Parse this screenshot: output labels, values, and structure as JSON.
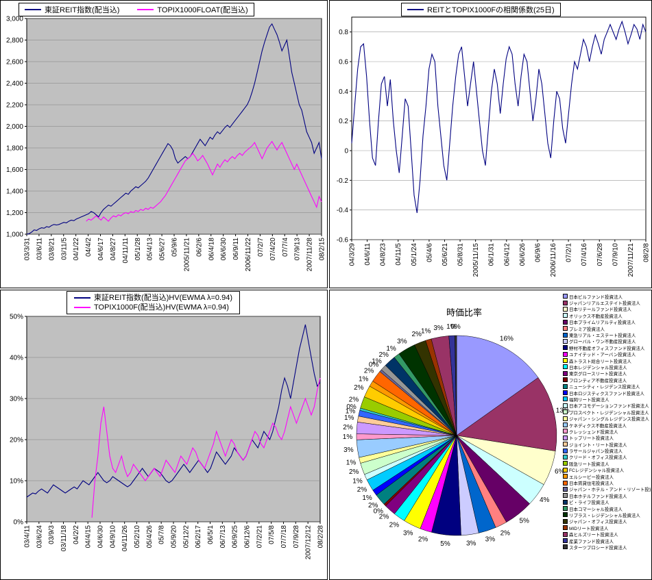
{
  "chart_data": [
    {
      "type": "line",
      "title": "",
      "legend": [
        {
          "label": "東証REIT指数(配当込)"
        },
        {
          "label": "TOPIX1000FLOAT(配当込)"
        }
      ],
      "plot_bg": "#C0C0C0",
      "grid_color": "#808080",
      "ylim": [
        1000,
        3000
      ],
      "y_tick_values": [
        1000,
        1200,
        1400,
        1600,
        1800,
        2000,
        2200,
        2400,
        2600,
        2800,
        3000
      ],
      "y_tick_labels": [
        "1,000",
        "1,200",
        "1,400",
        "1,600",
        "1,800",
        "2,000",
        "2,200",
        "2,400",
        "2,600",
        "2,800",
        "3,000"
      ],
      "x_labels": [
        "03/3/31",
        "03/6/11",
        "03/8/21",
        "03/11/5",
        "04/1/22",
        "04/4/2",
        "04/6/17",
        "04/8/27",
        "04/11/11",
        "05/1/28",
        "05/4/13",
        "05/6/27",
        "05/9/6",
        "2005/11/21",
        "06/2/6",
        "06/4/18",
        "06/6/30",
        "06/9/11",
        "2006/11/22",
        "07/2/7",
        "07/4/20",
        "07/7/4",
        "07/9/13",
        "2007/11/28",
        "08/2/15"
      ],
      "series": [
        {
          "name": "東証REIT指数(配当込)",
          "color": "#000080",
          "values": [
            1000,
            1005,
            1020,
            1040,
            1035,
            1050,
            1060,
            1055,
            1070,
            1065,
            1080,
            1090,
            1085,
            1090,
            1100,
            1110,
            1105,
            1120,
            1130,
            1125,
            1140,
            1150,
            1160,
            1170,
            1180,
            1190,
            1210,
            1200,
            1180,
            1160,
            1200,
            1230,
            1250,
            1270,
            1260,
            1280,
            1300,
            1320,
            1340,
            1360,
            1380,
            1370,
            1400,
            1420,
            1440,
            1430,
            1450,
            1470,
            1490,
            1520,
            1560,
            1600,
            1640,
            1680,
            1720,
            1760,
            1800,
            1840,
            1820,
            1780,
            1700,
            1660,
            1680,
            1700,
            1720,
            1700,
            1720,
            1760,
            1800,
            1840,
            1880,
            1850,
            1820,
            1860,
            1900,
            1880,
            1920,
            1950,
            1930,
            1960,
            1990,
            2010,
            1990,
            2020,
            2050,
            2080,
            2110,
            2140,
            2170,
            2200,
            2250,
            2320,
            2400,
            2500,
            2600,
            2700,
            2780,
            2850,
            2920,
            2950,
            2900,
            2850,
            2780,
            2700,
            2750,
            2800,
            2650,
            2500,
            2400,
            2300,
            2200,
            2150,
            2050,
            1950,
            1900,
            1850,
            1750,
            1800,
            1850,
            1700
          ]
        },
        {
          "name": "TOPIX1000FLOAT(配当込)",
          "color": "#FF00FF",
          "values": [
            null,
            null,
            null,
            null,
            null,
            null,
            null,
            null,
            null,
            null,
            null,
            null,
            null,
            null,
            null,
            null,
            null,
            null,
            null,
            null,
            null,
            null,
            null,
            null,
            1120,
            1140,
            1130,
            1150,
            1170,
            1150,
            1130,
            1160,
            1140,
            1120,
            1150,
            1170,
            1160,
            1180,
            1170,
            1190,
            1200,
            1190,
            1210,
            1200,
            1220,
            1210,
            1230,
            1220,
            1240,
            1230,
            1250,
            1240,
            1260,
            1280,
            1300,
            1330,
            1360,
            1400,
            1440,
            1480,
            1520,
            1560,
            1600,
            1640,
            1680,
            1700,
            1720,
            1750,
            1720,
            1680,
            1700,
            1730,
            1690,
            1650,
            1600,
            1550,
            1600,
            1650,
            1620,
            1660,
            1690,
            1670,
            1700,
            1720,
            1700,
            1730,
            1750,
            1730,
            1760,
            1780,
            1800,
            1820,
            1850,
            1800,
            1750,
            1700,
            1750,
            1800,
            1830,
            1860,
            1820,
            1780,
            1820,
            1850,
            1800,
            1750,
            1700,
            1650,
            1600,
            1650,
            1600,
            1550,
            1500,
            1450,
            1400,
            1350,
            1300,
            1250,
            1350,
            1300
          ]
        }
      ]
    },
    {
      "type": "line",
      "title": "REITとTOPIX1000Fの相関係数(25日)",
      "legend": [
        {
          "label": "REITとTOPIX1000Fの相関係数(25日)"
        }
      ],
      "plot_bg": "#FFFFFF",
      "grid_color": "#999999",
      "ylim": [
        -0.6,
        0.9
      ],
      "y_tick_values": [
        -0.6,
        -0.4,
        -0.2,
        0,
        0.2,
        0.4,
        0.6,
        0.8
      ],
      "y_tick_labels": [
        "-0.6",
        "-0.4",
        "-0.2",
        "0",
        "0.2",
        "0.4",
        "0.6",
        "0.8"
      ],
      "x_labels": [
        "04/3/29",
        "04/6/11",
        "04/8/23",
        "04/11/5",
        "05/1/24",
        "05/4/6",
        "05/6/21",
        "05/8/31",
        "2005/11/15",
        "06/1/31",
        "06/4/12",
        "06/6/26",
        "06/9/6",
        "2006/11/16",
        "07/2/1",
        "07/4/16",
        "07/6/28",
        "07/9/10",
        "2007/11/21",
        "08/2/8"
      ],
      "series": [
        {
          "name": "REITとTOPIX1000Fの相関係数(25日)",
          "color": "#000080",
          "values": [
            0.05,
            0.3,
            0.55,
            0.7,
            0.72,
            0.5,
            0.2,
            -0.05,
            -0.1,
            0.2,
            0.45,
            0.5,
            0.3,
            0.48,
            0.2,
            0.0,
            -0.15,
            0.1,
            0.35,
            0.3,
            0.0,
            -0.3,
            -0.42,
            -0.2,
            0.1,
            0.3,
            0.55,
            0.65,
            0.6,
            0.3,
            0.1,
            -0.1,
            -0.2,
            0.05,
            0.3,
            0.5,
            0.65,
            0.7,
            0.5,
            0.3,
            0.45,
            0.6,
            0.4,
            0.2,
            0.0,
            -0.1,
            0.15,
            0.4,
            0.55,
            0.45,
            0.25,
            0.45,
            0.62,
            0.7,
            0.65,
            0.45,
            0.3,
            0.5,
            0.65,
            0.6,
            0.4,
            0.2,
            0.35,
            0.55,
            0.45,
            0.25,
            0.05,
            -0.05,
            0.2,
            0.4,
            0.35,
            0.15,
            0.05,
            0.25,
            0.45,
            0.6,
            0.55,
            0.65,
            0.75,
            0.7,
            0.6,
            0.7,
            0.78,
            0.72,
            0.65,
            0.75,
            0.8,
            0.85,
            0.8,
            0.75,
            0.82,
            0.87,
            0.8,
            0.72,
            0.78,
            0.85,
            0.82,
            0.75,
            0.85,
            0.8
          ]
        }
      ]
    },
    {
      "type": "line",
      "title": "",
      "legend": [
        {
          "label": "東証REIT指数(配当込)HV(EWMA λ=0.94)"
        },
        {
          "label": "TOPIX1000F(配当込)HV(EWMA λ=0.94)"
        }
      ],
      "plot_bg": "#C0C0C0",
      "grid_color": "#808080",
      "ylim": [
        0,
        50
      ],
      "y_tick_values": [
        0,
        10,
        20,
        30,
        40,
        50
      ],
      "y_tick_labels": [
        "0%",
        "10%",
        "20%",
        "30%",
        "40%",
        "50%"
      ],
      "x_labels": [
        "03/4/11",
        "03/6/24",
        "03/9/3",
        "03/11/18",
        "04/2/2",
        "04/4/15",
        "04/6/30",
        "04/9/10",
        "04/11/26",
        "05/2/10",
        "05/4/26",
        "05/7/8",
        "05/9/20",
        "05/12/2",
        "06/2/17",
        "06/5/1",
        "06/7/13",
        "06/9/25",
        "06/12/6",
        "07/2/21",
        "07/5/8",
        "07/7/18",
        "07/9/28",
        "2007/12/12",
        "08/2/28"
      ],
      "series": [
        {
          "name": "東証REIT指数(配当込)HV(EWMA λ=0.94)",
          "color": "#000080",
          "values": [
            6,
            6.5,
            7,
            6.8,
            7.5,
            8,
            7.5,
            7,
            8,
            9,
            8.5,
            8,
            7.5,
            7,
            7.5,
            8,
            8.5,
            8,
            9,
            10,
            9.5,
            9,
            10,
            11,
            12,
            11,
            10,
            9.5,
            10,
            11,
            10.5,
            10,
            9.5,
            9,
            8.5,
            9,
            10,
            11,
            12,
            13,
            12,
            11,
            12,
            13,
            12.5,
            12,
            11,
            10,
            9.5,
            10,
            11,
            12,
            13,
            14,
            13,
            12,
            13,
            14,
            15,
            14,
            13,
            12,
            13,
            15,
            17,
            16,
            15,
            14,
            15,
            16,
            18,
            17,
            16,
            15,
            16,
            18,
            20,
            19,
            18,
            20,
            22,
            21,
            20,
            22,
            25,
            28,
            32,
            35,
            33,
            30,
            34,
            38,
            42,
            45,
            48,
            44,
            40,
            36,
            33,
            34
          ]
        },
        {
          "name": "TOPIX1000F(配当込)HV(EWMA λ=0.94)",
          "color": "#FF00FF",
          "values": [
            null,
            null,
            null,
            null,
            null,
            null,
            null,
            null,
            null,
            null,
            null,
            null,
            null,
            null,
            null,
            null,
            null,
            null,
            null,
            null,
            null,
            null,
            1,
            10,
            16,
            24,
            28,
            22,
            16,
            13,
            12,
            14,
            16,
            13,
            11,
            12,
            14,
            13,
            12,
            11,
            10,
            11,
            12,
            13,
            12,
            11,
            13,
            15,
            14,
            13,
            12,
            14,
            16,
            15,
            14,
            16,
            18,
            17,
            15,
            14,
            13,
            15,
            17,
            19,
            22,
            20,
            18,
            16,
            18,
            20,
            19,
            17,
            16,
            15,
            16,
            18,
            20,
            22,
            21,
            19,
            18,
            20,
            22,
            24,
            23,
            21,
            20,
            22,
            25,
            28,
            26,
            24,
            26,
            28,
            30,
            28,
            26,
            28,
            32,
            35
          ]
        }
      ]
    },
    {
      "type": "pie",
      "title": "時価比率",
      "legend_position": "right",
      "slices": [
        {
          "name": "日本ビルファンド投資法人",
          "label": "16%",
          "value": 16,
          "color": "#9999FF"
        },
        {
          "name": "ジャパンリアルエステイト投資法人",
          "label": "13%",
          "value": 13,
          "color": "#993366"
        },
        {
          "name": "日本リテールファンド投資法人",
          "label": "6%",
          "value": 6,
          "color": "#FFFFCC"
        },
        {
          "name": "オリックス不動産投資法人",
          "label": "4%",
          "value": 4,
          "color": "#CCFFFF"
        },
        {
          "name": "日本プライムリアルティ投資法人",
          "label": "5%",
          "value": 5,
          "color": "#660066"
        },
        {
          "name": "プレミア投資法人",
          "label": "2%",
          "value": 2,
          "color": "#FF8080"
        },
        {
          "name": "東急リアル・エステート投資法人",
          "label": "3%",
          "value": 3,
          "color": "#0066CC"
        },
        {
          "name": "グローバル・ワン不動産投資法人",
          "label": "3%",
          "value": 3,
          "color": "#CCCCFF"
        },
        {
          "name": "野村不動産オフィスファンド投資法人",
          "label": "5%",
          "value": 5,
          "color": "#000080"
        },
        {
          "name": "ユナイテッド・アーバン投資法人",
          "label": "2%",
          "value": 2,
          "color": "#FF00FF"
        },
        {
          "name": "森トラスト総合リート投資法人",
          "label": "3%",
          "value": 3,
          "color": "#FFFF00"
        },
        {
          "name": "日本レジデンシャル投資法人",
          "label": "2%",
          "value": 2,
          "color": "#00FFFF"
        },
        {
          "name": "東京グロースリート投資法人",
          "label": "2%",
          "value": 2,
          "color": "#800080"
        },
        {
          "name": "フロンティア不動産投資法人",
          "label": "0%",
          "value": 0.4,
          "color": "#800000"
        },
        {
          "name": "ニューシティ・レジデンス投資法人",
          "label": "2%",
          "value": 2,
          "color": "#008080"
        },
        {
          "name": "日本ロジスティクスファンド投資法人",
          "label": "1%",
          "value": 1,
          "color": "#0000FF"
        },
        {
          "name": "福岡リート投資法人",
          "label": "2%",
          "value": 2,
          "color": "#00CCFF"
        },
        {
          "name": "日本アコモデーションファンド投資法人",
          "label": "1%",
          "value": 1,
          "color": "#CCFFFF"
        },
        {
          "name": "プロスペクト・レジデンシャル投資法人",
          "label": "2%",
          "value": 2,
          "color": "#CCFFCC"
        },
        {
          "name": "ジャパン・シングルレジデンス投資法人",
          "label": "1%",
          "value": 1,
          "color": "#FFFF99"
        },
        {
          "name": "ケネディクス不動産投資法人",
          "label": "3%",
          "value": 3,
          "color": "#99CCFF"
        },
        {
          "name": "クレッシェンド投資法人",
          "label": "1%",
          "value": 1,
          "color": "#FF99CC"
        },
        {
          "name": "トップリート投資法人",
          "label": "2%",
          "value": 2,
          "color": "#CC99FF"
        },
        {
          "name": "ジョイント・リート投資法人",
          "label": "1%",
          "value": 1,
          "color": "#FFCC99"
        },
        {
          "name": "ラサールジャパン投資法人",
          "label": "1%",
          "value": 1,
          "color": "#3366FF"
        },
        {
          "name": "クリード・オフィス投資法人",
          "label": "0%",
          "value": 0.4,
          "color": "#33CCCC"
        },
        {
          "name": "阪急リート投資法人",
          "label": "2%",
          "value": 2,
          "color": "#99CC00"
        },
        {
          "name": "FCレジデンシャル投資法人",
          "label": "2%",
          "value": 2,
          "color": "#FFCC00"
        },
        {
          "name": "エルシーピー投資法人",
          "label": "1%",
          "value": 1,
          "color": "#FF9900"
        },
        {
          "name": "日本賃貸住宅投資法人",
          "label": "2%",
          "value": 2,
          "color": "#FF6600"
        },
        {
          "name": "ジャパン・ホテル・アンド・リゾート投資法人",
          "label": "0%",
          "value": 0.4,
          "color": "#666699"
        },
        {
          "name": "日本ホテルファンド投資法人",
          "label": "1%",
          "value": 1,
          "color": "#969696"
        },
        {
          "name": "ビ・ライフ投資法人",
          "label": "2%",
          "value": 2,
          "color": "#003366"
        },
        {
          "name": "日本コマーシャル投資法人",
          "label": "1%",
          "value": 1,
          "color": "#339966"
        },
        {
          "name": "リプラス・レジデンシャル投資法人",
          "label": "3%",
          "value": 3,
          "color": "#003300"
        },
        {
          "name": "ジャパン・オフィス投資法人",
          "label": "2%",
          "value": 2,
          "color": "#333300"
        },
        {
          "name": "MIDリート投資法人",
          "label": "1%",
          "value": 1,
          "color": "#993300"
        },
        {
          "name": "森ヒルズリート投資法人",
          "label": "3%",
          "value": 3,
          "color": "#993366"
        },
        {
          "name": "産業ファンド投資法人",
          "label": "1%",
          "value": 1,
          "color": "#333399"
        },
        {
          "name": "スターツプロシード投資法人",
          "label": "0%",
          "value": 0.3,
          "color": "#333333"
        }
      ]
    }
  ]
}
